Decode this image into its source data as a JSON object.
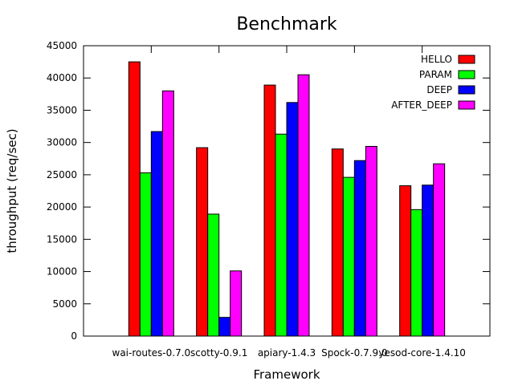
{
  "chart_data": {
    "type": "bar",
    "title": "Benchmark",
    "xlabel": "Framework",
    "ylabel": "throughput (req/sec)",
    "ylim": [
      0,
      45000
    ],
    "yticks": [
      0,
      5000,
      10000,
      15000,
      20000,
      25000,
      30000,
      35000,
      40000,
      45000
    ],
    "grid": false,
    "legend_position": "top-right",
    "categories": [
      "wai-routes-0.7.0",
      "scotty-0.9.1",
      "apiary-1.4.3",
      "Spock-0.7.9.0",
      "yesod-core-1.4.10"
    ],
    "series": [
      {
        "name": "HELLO",
        "color": "#ff0000",
        "values": [
          42500,
          29200,
          38900,
          29000,
          23300
        ]
      },
      {
        "name": "PARAM",
        "color": "#00ff00",
        "values": [
          25300,
          18900,
          31300,
          24600,
          19600
        ]
      },
      {
        "name": "DEEP",
        "color": "#0000ff",
        "values": [
          31700,
          2900,
          36200,
          27200,
          23400
        ]
      },
      {
        "name": "AFTER_DEEP",
        "color": "#ff00ff",
        "values": [
          38000,
          10100,
          40500,
          29400,
          26700
        ]
      }
    ]
  }
}
